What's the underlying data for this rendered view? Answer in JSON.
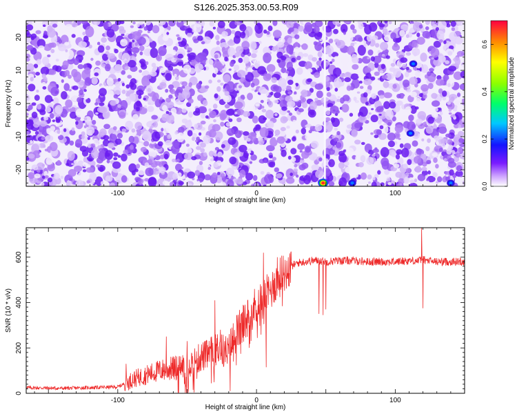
{
  "title": "S126.2025.353.00.53.R09",
  "chart_data": [
    {
      "type": "heatmap",
      "xlabel": "Height of straight line (km)",
      "ylabel": "Frequency (Hz)",
      "xlim": [
        -166,
        150
      ],
      "ylim": [
        -25,
        25
      ],
      "xticks": [
        "-100",
        "0",
        "100"
      ],
      "xtick_values": [
        -100,
        0,
        100
      ],
      "yticks": [
        "-20",
        "-10",
        "0",
        "10",
        "20"
      ],
      "ytick_values": [
        -20,
        -10,
        0,
        10,
        20
      ],
      "colorbar": {
        "label": "Normalized spectral amplitude",
        "range": [
          0,
          0.7
        ],
        "ticks": [
          "0.0",
          "0.2",
          "0.4",
          "0.6"
        ],
        "tick_values": [
          0,
          0.2,
          0.4,
          0.6
        ]
      },
      "colors": {
        "low": "#f2ecfc",
        "mid": "#b07ef5",
        "high": "#6a1bf0"
      },
      "hot_spots": [
        {
          "x": 48,
          "y": -24,
          "amplitude": 0.7
        },
        {
          "x": 69,
          "y": -24,
          "amplitude": 0.15
        },
        {
          "x": 140,
          "y": -24,
          "amplitude": 0.15
        },
        {
          "x": 113,
          "y": 12,
          "amplitude": 0.12
        },
        {
          "x": 111,
          "y": -9,
          "amplitude": 0.12
        }
      ],
      "gap_x": 48
    },
    {
      "type": "line",
      "xlabel": "Height of straight line (km)",
      "ylabel": "SNR (10 * v/v)",
      "xlim": [
        -166,
        150
      ],
      "ylim": [
        0,
        730
      ],
      "xticks": [
        "-100",
        "0",
        "100"
      ],
      "xtick_values": [
        -100,
        0,
        100
      ],
      "yticks": [
        "0",
        "200",
        "400",
        "600"
      ],
      "ytick_values": [
        0,
        200,
        400,
        600
      ],
      "line_color": "#ee2b2b",
      "series": [
        {
          "x": [
            -166,
            -140,
            -120,
            -100,
            -96,
            -94,
            -92,
            -90,
            -80,
            -70,
            -60,
            -50,
            -45,
            -40,
            -35,
            -30,
            -28,
            -25,
            -20,
            -18,
            -15,
            -10,
            -5,
            0,
            5,
            10,
            15,
            20,
            25,
            30,
            40,
            45,
            50,
            60,
            70,
            80,
            90,
            100,
            110,
            118,
            120,
            122,
            130,
            140,
            150
          ],
          "y": [
            25,
            22,
            25,
            28,
            40,
            45,
            50,
            60,
            80,
            100,
            110,
            125,
            140,
            160,
            170,
            190,
            200,
            190,
            175,
            220,
            260,
            300,
            350,
            390,
            420,
            450,
            500,
            530,
            560,
            575,
            585,
            585,
            580,
            585,
            585,
            580,
            580,
            580,
            585,
            585,
            590,
            585,
            580,
            580,
            580
          ]
        }
      ],
      "spikes": [
        {
          "x": -94,
          "y": 130
        },
        {
          "x": -65,
          "y": 250
        },
        {
          "x": -50,
          "y": 230
        },
        {
          "x": -30,
          "y": 410
        },
        {
          "x": -26,
          "y": 280
        },
        {
          "x": -19,
          "y": 10
        },
        {
          "x": 5,
          "y": 620
        },
        {
          "x": 7,
          "y": 115
        },
        {
          "x": 15,
          "y": 600
        },
        {
          "x": 45,
          "y": 350
        },
        {
          "x": 48,
          "y": 345
        },
        {
          "x": 50,
          "y": 370
        },
        {
          "x": 119,
          "y": 730
        },
        {
          "x": 120,
          "y": 375
        }
      ]
    }
  ]
}
